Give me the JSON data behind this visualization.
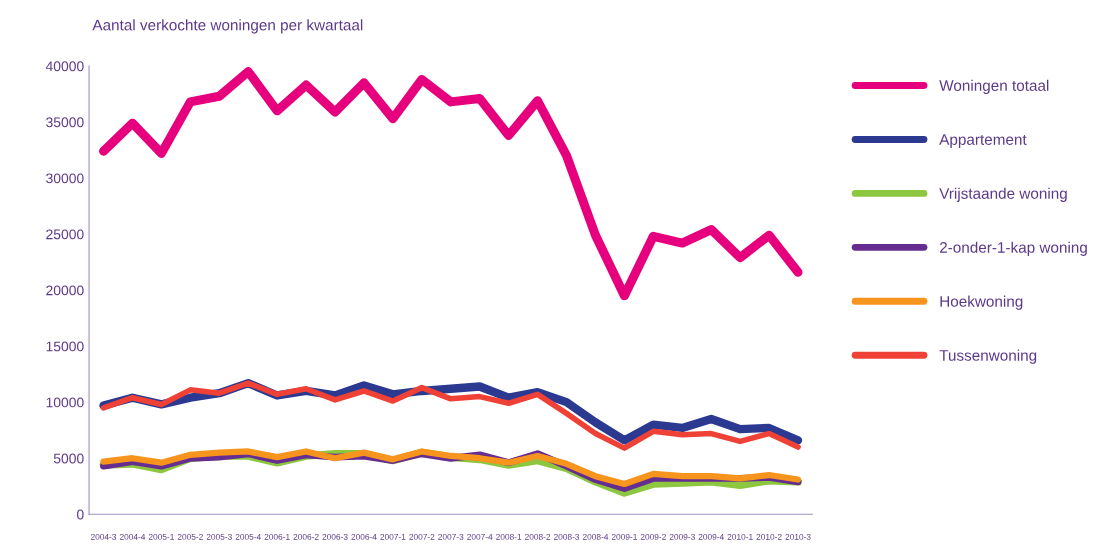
{
  "chart_data": {
    "type": "line",
    "title": "Aantal verkochte woningen per kwartaal",
    "categories": [
      "2004-3",
      "2004-4",
      "2005-1",
      "2005-2",
      "2005-3",
      "2005-4",
      "2006-1",
      "2006-2",
      "2006-3",
      "2006-4",
      "2007-1",
      "2007-2",
      "2007-3",
      "2007-4",
      "2008-1",
      "2008-2",
      "2008-3",
      "2008-4",
      "2009-1",
      "2009-2",
      "2009-3",
      "2009-4",
      "2010-1",
      "2010-2",
      "2010-3"
    ],
    "series": [
      {
        "name": "Woningen totaal",
        "color": "#e6007e",
        "values": [
          32400,
          34900,
          32200,
          36800,
          37300,
          39500,
          36000,
          38300,
          35900,
          38500,
          35300,
          38800,
          36800,
          37100,
          33800,
          36900,
          32000,
          24900,
          19500,
          24800,
          24200,
          25400,
          22900,
          24900,
          21600
        ]
      },
      {
        "name": "Appartement",
        "color": "#2b3990",
        "values": [
          9700,
          10400,
          9800,
          10400,
          10800,
          11700,
          10600,
          11000,
          10600,
          11500,
          10700,
          11000,
          11200,
          11400,
          10400,
          10900,
          10000,
          8200,
          6600,
          8000,
          7700,
          8500,
          7600,
          7700,
          6600
        ]
      },
      {
        "name": "Vrijstaande woning",
        "color": "#8dc63f",
        "values": [
          4400,
          4500,
          4000,
          5000,
          5200,
          5200,
          4600,
          5200,
          5400,
          5400,
          4800,
          5500,
          5100,
          4900,
          4400,
          4800,
          4100,
          2900,
          1900,
          2700,
          2800,
          2900,
          2600,
          3000,
          2900
        ]
      },
      {
        "name": "2-onder-1-kap woning",
        "color": "#662d91",
        "values": [
          4300,
          4700,
          4300,
          5000,
          5100,
          5400,
          4800,
          5300,
          5100,
          5200,
          4800,
          5400,
          5000,
          5300,
          4600,
          5400,
          4300,
          3100,
          2300,
          3200,
          3200,
          3200,
          3200,
          3300,
          2900
        ]
      },
      {
        "name": "Hoekwoning",
        "color": "#f7941d",
        "values": [
          4700,
          5000,
          4600,
          5300,
          5500,
          5600,
          5100,
          5600,
          5000,
          5500,
          4900,
          5600,
          5200,
          5000,
          4600,
          5200,
          4500,
          3400,
          2700,
          3600,
          3400,
          3400,
          3200,
          3500,
          3100
        ]
      },
      {
        "name": "Tussenwoning",
        "color": "#ef4136",
        "values": [
          9500,
          10400,
          9800,
          11100,
          10800,
          11700,
          10700,
          11200,
          10200,
          11000,
          10100,
          11300,
          10300,
          10500,
          9900,
          10700,
          9000,
          7200,
          5900,
          7400,
          7100,
          7200,
          6500,
          7200,
          6000
        ]
      }
    ],
    "ylim": [
      0,
      40000
    ],
    "yticks": [
      0,
      5000,
      10000,
      15000,
      20000,
      25000,
      30000,
      35000,
      40000
    ],
    "grid": false,
    "legend": "right",
    "marker": "none",
    "line_style": "solid"
  }
}
